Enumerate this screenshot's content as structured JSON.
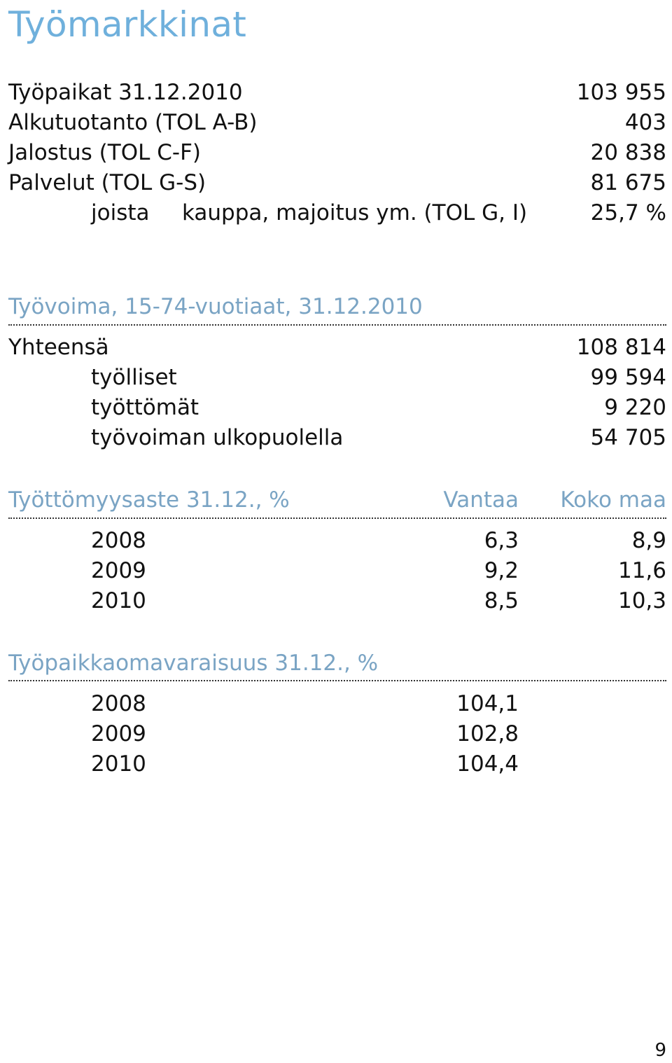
{
  "title": "Työmarkkinat",
  "jobs": {
    "rows": [
      {
        "label": "Työpaikat 31.12.2010",
        "value": "103 955"
      },
      {
        "label": "Alkutuotanto (TOL A-B)",
        "value": "403"
      },
      {
        "label": "Jalostus (TOL C-F)",
        "value": "20 838"
      },
      {
        "label": "Palvelut (TOL G-S)",
        "value": "81 675"
      }
    ],
    "sub_row": {
      "prefix": "joista",
      "label": "kauppa, majoitus ym. (TOL G, I)",
      "value": "25,7 %"
    }
  },
  "workforce": {
    "heading": "Työvoima, 15-74-vuotiaat, 31.12.2010",
    "total": {
      "label": "Yhteensä",
      "value": "108 814"
    },
    "rows": [
      {
        "label": "työlliset",
        "value": "99 594"
      },
      {
        "label": "työttömät",
        "value": "9 220"
      },
      {
        "label": "työvoiman ulkopuolella",
        "value": "54 705"
      }
    ]
  },
  "unemployment": {
    "heading": "Työttömyysaste 31.12., %",
    "col_vantaa": "Vantaa",
    "col_country": "Koko maa",
    "rows": [
      {
        "year": "2008",
        "vantaa": "6,3",
        "country": "8,9"
      },
      {
        "year": "2009",
        "vantaa": "9,2",
        "country": "11,6"
      },
      {
        "year": "2010",
        "vantaa": "8,5",
        "country": "10,3"
      }
    ]
  },
  "selfsufficiency": {
    "heading": "Työpaikkaomavaraisuus 31.12., %",
    "rows": [
      {
        "year": "2008",
        "value": "104,1"
      },
      {
        "year": "2009",
        "value": "102,8"
      },
      {
        "year": "2010",
        "value": "104,4"
      }
    ]
  },
  "page_number": "9"
}
